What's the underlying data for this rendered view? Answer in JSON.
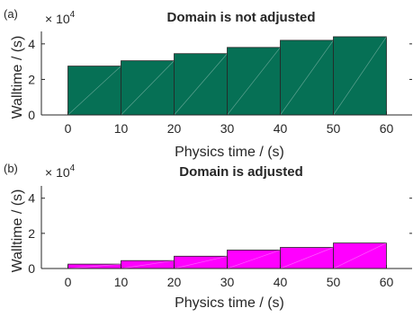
{
  "chart_data": [
    {
      "type": "bar",
      "panel_label": "(a)",
      "title": "Domain is not adjusted",
      "xlabel": "Physics time / (s)",
      "ylabel": "Walltime / (s)",
      "exponent_base": "× 10",
      "exponent_power": "4",
      "bin_edges": [
        0,
        10,
        20,
        30,
        40,
        50,
        60
      ],
      "values": [
        2.75,
        3.05,
        3.45,
        3.8,
        4.2,
        4.4
      ],
      "xticks": [
        0,
        10,
        20,
        30,
        40,
        50,
        60
      ],
      "yticks": [
        0,
        2,
        4
      ],
      "xlim": [
        -5,
        65
      ],
      "ylim": [
        0,
        4.7
      ],
      "color": "#067055"
    },
    {
      "type": "bar",
      "panel_label": "(b)",
      "title": "Domain is adjusted",
      "xlabel": "Physics time / (s)",
      "ylabel": "Walltime / (s)",
      "exponent_base": "× 10",
      "exponent_power": "4",
      "bin_edges": [
        0,
        10,
        20,
        30,
        40,
        50,
        60
      ],
      "values": [
        0.25,
        0.45,
        0.7,
        1.05,
        1.2,
        1.45
      ],
      "xticks": [
        0,
        10,
        20,
        30,
        40,
        50,
        60
      ],
      "yticks": [
        0,
        2,
        4
      ],
      "xlim": [
        -5,
        65
      ],
      "ylim": [
        0,
        4.7
      ],
      "color": "#ff00ff"
    }
  ]
}
